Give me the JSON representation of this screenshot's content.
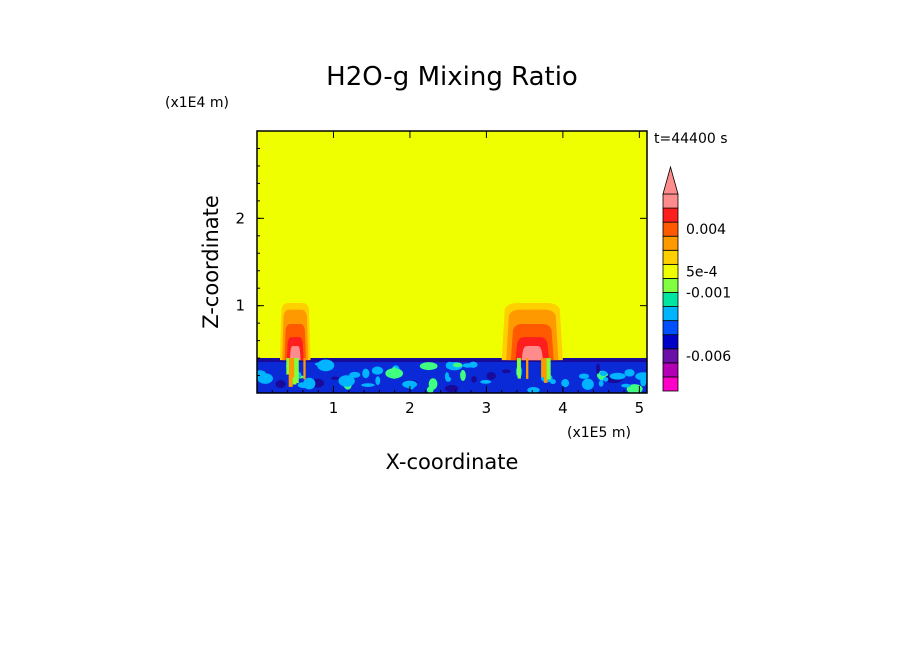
{
  "chart_data": {
    "type": "heatmap",
    "title": "H2O-g Mixing Ratio",
    "xlabel": "X-coordinate",
    "ylabel": "Z-coordinate",
    "x_unit": "(x1E5 m)",
    "y_unit": "(x1E4 m)",
    "time_label": "t=44400 s",
    "xlim": [
      0,
      5.1
    ],
    "ylim": [
      0,
      3.0
    ],
    "x_ticks": [
      1,
      2,
      3,
      4,
      5
    ],
    "y_ticks": [
      1,
      2
    ],
    "grid": false,
    "background_value_color": "#f0ff00",
    "levels": [
      {
        "color": "#ff00c8"
      },
      {
        "color": "#b400b4"
      },
      {
        "color": "#6a0fa8"
      },
      {
        "color": "#0000c8"
      },
      {
        "color": "#0050ff"
      },
      {
        "color": "#00b4ff"
      },
      {
        "color": "#00e6a0"
      },
      {
        "color": "#80ff40"
      },
      {
        "color": "#f0ff00"
      },
      {
        "color": "#ffd000"
      },
      {
        "color": "#ff9900"
      },
      {
        "color": "#ff5a00"
      },
      {
        "color": "#ff1e1e"
      },
      {
        "color": "#ff8c8c"
      }
    ],
    "colorbar_labels": [
      {
        "text": "0.004",
        "level_index": 11
      },
      {
        "text": "5e-4",
        "level_index": 8
      },
      {
        "text": "-0.001",
        "level_index": 6.5
      },
      {
        "text": "-0.006",
        "level_index": 2
      }
    ],
    "features": {
      "boundary_layer_top_z": 0.4,
      "plumes": [
        {
          "x_center": 0.5,
          "half_width": 0.2,
          "top_z": 1.03
        },
        {
          "x_center": 3.6,
          "half_width": 0.4,
          "top_z": 1.03
        }
      ]
    }
  },
  "colors": {
    "frame": "#000000",
    "dry_layer": "#0a2ad8",
    "dark_layer": "#1a0a9a",
    "dry_patch": "#00b4ff",
    "moist_patch": "#40ff80"
  }
}
